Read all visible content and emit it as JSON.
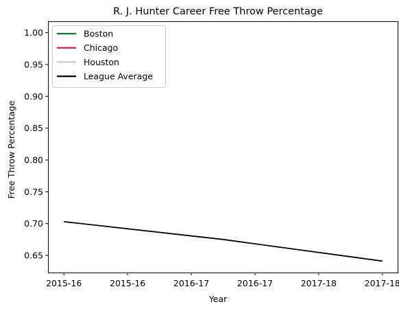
{
  "chart_data": {
    "type": "line",
    "title": "R. J. Hunter Career Free Throw Percentage",
    "xlabel": "Year",
    "ylabel": "Free Throw Percentage",
    "x_tick_labels": [
      "2015-16",
      "2015-16",
      "2016-17",
      "2016-17",
      "2017-18",
      "2017-18"
    ],
    "x_range": [
      -0.05,
      1.05
    ],
    "ylim": [
      0.623,
      1.018
    ],
    "y_ticks": [
      "0.65",
      "0.70",
      "0.75",
      "0.80",
      "0.85",
      "0.90",
      "0.95",
      "1.00"
    ],
    "grid": false,
    "legend_position": "top-left",
    "series": [
      {
        "name": "Boston",
        "color": "#007a33",
        "x": [],
        "y": []
      },
      {
        "name": "Chicago",
        "color": "#ce1141",
        "x": [],
        "y": []
      },
      {
        "name": "Houston",
        "color": "#c4ced4",
        "x": [],
        "y": []
      },
      {
        "name": "League Average",
        "color": "#000000",
        "x": [
          0,
          0.5,
          1
        ],
        "y": [
          0.703,
          0.675,
          0.641
        ]
      }
    ]
  }
}
